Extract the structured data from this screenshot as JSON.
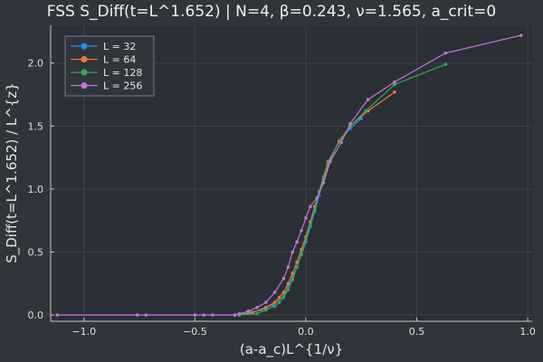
{
  "chart_data": {
    "type": "line",
    "title": "FSS S_Diff(t=L^1.652) | N=4, β=0.243, ν=1.565, a_crit=0",
    "xlabel": "(a-a_c)L^{1/ν}",
    "ylabel": "S_Diff(t=L^1.652) / L^{z}",
    "xlim": [
      -1.15,
      1.02
    ],
    "ylim": [
      -0.05,
      2.3
    ],
    "xticks": [
      -1.0,
      -0.5,
      0.0,
      0.5,
      1.0
    ],
    "xtick_labels": [
      "−1.0",
      "−0.5",
      "0.0",
      "0.5",
      "1.0"
    ],
    "yticks": [
      0.0,
      0.5,
      1.0,
      1.5,
      2.0
    ],
    "ytick_labels": [
      "0.0",
      "0.5",
      "1.0",
      "1.5",
      "2.0"
    ],
    "grid": true,
    "legend_position": "top-left",
    "series": [
      {
        "name": "L = 32",
        "color": "#1e90e0",
        "x": [
          -0.32,
          -0.25,
          -0.2,
          -0.15,
          -0.1,
          -0.08,
          -0.06,
          -0.04,
          -0.02,
          0.0,
          0.02,
          0.04,
          0.06,
          0.08,
          0.1,
          0.15,
          0.2,
          0.25
        ],
        "y": [
          0.0,
          0.02,
          0.04,
          0.08,
          0.15,
          0.22,
          0.3,
          0.38,
          0.48,
          0.58,
          0.7,
          0.82,
          0.95,
          1.08,
          1.2,
          1.38,
          1.48,
          1.56
        ]
      },
      {
        "name": "L = 64",
        "color": "#e67a3c",
        "x": [
          -0.3,
          -0.24,
          -0.18,
          -0.14,
          -0.12,
          -0.1,
          -0.08,
          -0.06,
          -0.04,
          -0.02,
          0.0,
          0.02,
          0.04,
          0.06,
          0.08,
          0.1,
          0.15,
          0.2,
          0.28,
          0.4
        ],
        "y": [
          0.0,
          0.02,
          0.06,
          0.1,
          0.14,
          0.18,
          0.25,
          0.33,
          0.42,
          0.52,
          0.62,
          0.74,
          0.86,
          0.98,
          1.08,
          1.2,
          1.38,
          1.5,
          1.62,
          1.77
        ]
      },
      {
        "name": "L = 128",
        "color": "#3aa55a",
        "x": [
          -0.3,
          -0.22,
          -0.18,
          -0.14,
          -0.12,
          -0.1,
          -0.08,
          -0.06,
          -0.04,
          -0.02,
          0.0,
          0.02,
          0.04,
          0.06,
          0.08,
          0.1,
          0.16,
          0.2,
          0.27,
          0.4,
          0.63
        ],
        "y": [
          0.0,
          0.01,
          0.04,
          0.07,
          0.1,
          0.14,
          0.2,
          0.28,
          0.38,
          0.48,
          0.6,
          0.72,
          0.84,
          0.98,
          1.1,
          1.22,
          1.4,
          1.5,
          1.62,
          1.83,
          1.99
        ]
      },
      {
        "name": "L = 256",
        "color": "#c773d6",
        "x": [
          -1.12,
          -0.76,
          -0.72,
          -0.5,
          -0.46,
          -0.42,
          -0.32,
          -0.3,
          -0.26,
          -0.22,
          -0.18,
          -0.14,
          -0.1,
          -0.08,
          -0.06,
          -0.04,
          -0.02,
          0.0,
          0.02,
          0.05,
          0.08,
          0.11,
          0.16,
          0.2,
          0.28,
          0.4,
          0.63,
          0.97
        ],
        "y": [
          0.0,
          0.0,
          0.0,
          0.0,
          0.0,
          0.0,
          0.0,
          0.01,
          0.03,
          0.06,
          0.1,
          0.18,
          0.29,
          0.38,
          0.5,
          0.58,
          0.67,
          0.77,
          0.86,
          0.93,
          1.05,
          1.22,
          1.37,
          1.52,
          1.71,
          1.85,
          2.08,
          2.22
        ]
      }
    ]
  }
}
